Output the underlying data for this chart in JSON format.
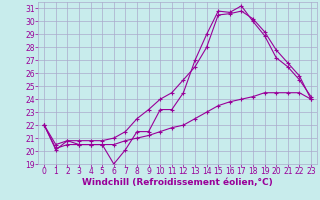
{
  "background_color": "#c8ecec",
  "grid_color": "#aaaacc",
  "line_color": "#990099",
  "marker": "+",
  "xlabel": "Windchill (Refroidissement éolien,°C)",
  "xlabel_color": "#990099",
  "xlim": [
    -0.5,
    23.5
  ],
  "ylim": [
    19,
    31.5
  ],
  "yticks": [
    19,
    20,
    21,
    22,
    23,
    24,
    25,
    26,
    27,
    28,
    29,
    30,
    31
  ],
  "xticks": [
    0,
    1,
    2,
    3,
    4,
    5,
    6,
    7,
    8,
    9,
    10,
    11,
    12,
    13,
    14,
    15,
    16,
    17,
    18,
    19,
    20,
    21,
    22,
    23
  ],
  "line1_x": [
    0,
    1,
    2,
    3,
    4,
    5,
    6,
    7,
    8,
    9,
    10,
    11,
    12,
    13,
    14,
    15,
    16,
    17,
    18,
    19,
    20,
    21,
    22,
    23
  ],
  "line1_y": [
    22,
    20.1,
    20.8,
    20.5,
    20.5,
    20.5,
    19.0,
    20.1,
    21.5,
    21.5,
    23.2,
    23.2,
    24.5,
    27.0,
    29.0,
    30.8,
    30.7,
    31.2,
    30.0,
    28.9,
    27.2,
    26.5,
    25.5,
    24.2
  ],
  "line2_x": [
    0,
    1,
    2,
    3,
    4,
    5,
    6,
    7,
    8,
    9,
    10,
    11,
    12,
    13,
    14,
    15,
    16,
    17,
    18,
    19,
    20,
    21,
    22,
    23
  ],
  "line2_y": [
    22,
    20.5,
    20.8,
    20.8,
    20.8,
    20.8,
    21.0,
    21.5,
    22.5,
    23.2,
    24.0,
    24.5,
    25.5,
    26.5,
    28.0,
    30.5,
    30.6,
    30.8,
    30.2,
    29.2,
    27.8,
    26.8,
    25.8,
    24.0
  ],
  "line3_x": [
    0,
    1,
    2,
    3,
    4,
    5,
    6,
    7,
    8,
    9,
    10,
    11,
    12,
    13,
    14,
    15,
    16,
    17,
    18,
    19,
    20,
    21,
    22,
    23
  ],
  "line3_y": [
    22,
    20.2,
    20.5,
    20.5,
    20.5,
    20.5,
    20.5,
    20.8,
    21.0,
    21.2,
    21.5,
    21.8,
    22.0,
    22.5,
    23.0,
    23.5,
    23.8,
    24.0,
    24.2,
    24.5,
    24.5,
    24.5,
    24.5,
    24.0
  ],
  "tick_fontsize": 5.5,
  "xlabel_fontsize": 6.5
}
